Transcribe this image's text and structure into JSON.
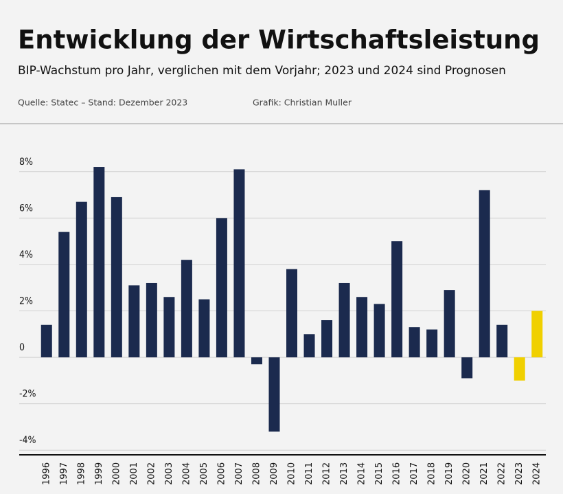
{
  "chart_data": {
    "type": "bar",
    "title": "Entwicklung der Wirtschaftsleistung",
    "subtitle": "BIP-Wachstum pro Jahr, verglichen mit dem Vorjahr; 2023 und 2024 sind Prognosen",
    "source": "Quelle: Statec – Stand: Dezember 2023",
    "credit": "Grafik: Christian Muller",
    "categories": [
      "1996",
      "1997",
      "1998",
      "1999",
      "2000",
      "2001",
      "2002",
      "2003",
      "2004",
      "2005",
      "2006",
      "2007",
      "2008",
      "2009",
      "2010",
      "2011",
      "2012",
      "2013",
      "2014",
      "2015",
      "2016",
      "2017",
      "2018",
      "2019",
      "2020",
      "2021",
      "2022",
      "2023",
      "2024"
    ],
    "values": [
      1.4,
      5.4,
      6.7,
      8.2,
      6.9,
      3.1,
      3.2,
      2.6,
      4.2,
      2.5,
      6.0,
      8.1,
      -0.3,
      -3.2,
      3.8,
      1.0,
      1.6,
      3.2,
      2.6,
      2.3,
      5.0,
      1.3,
      1.2,
      2.9,
      -0.9,
      7.2,
      1.4,
      -1.0,
      2.0
    ],
    "colors": [
      "#1b2a4e",
      "#1b2a4e",
      "#1b2a4e",
      "#1b2a4e",
      "#1b2a4e",
      "#1b2a4e",
      "#1b2a4e",
      "#1b2a4e",
      "#1b2a4e",
      "#1b2a4e",
      "#1b2a4e",
      "#1b2a4e",
      "#1b2a4e",
      "#1b2a4e",
      "#1b2a4e",
      "#1b2a4e",
      "#1b2a4e",
      "#1b2a4e",
      "#1b2a4e",
      "#1b2a4e",
      "#1b2a4e",
      "#1b2a4e",
      "#1b2a4e",
      "#1b2a4e",
      "#1b2a4e",
      "#1b2a4e",
      "#1b2a4e",
      "#f0d000",
      "#f0d000"
    ],
    "ylim": [
      -4.2,
      9
    ],
    "yticks": [
      {
        "value": -4,
        "label": "-4%"
      },
      {
        "value": -2,
        "label": "-2%"
      },
      0,
      {
        "value": 2,
        "label": "2%"
      },
      {
        "value": 4,
        "label": "4%"
      },
      {
        "value": 6,
        "label": "6%"
      },
      {
        "value": 8,
        "label": "8%"
      }
    ],
    "grid": true
  }
}
